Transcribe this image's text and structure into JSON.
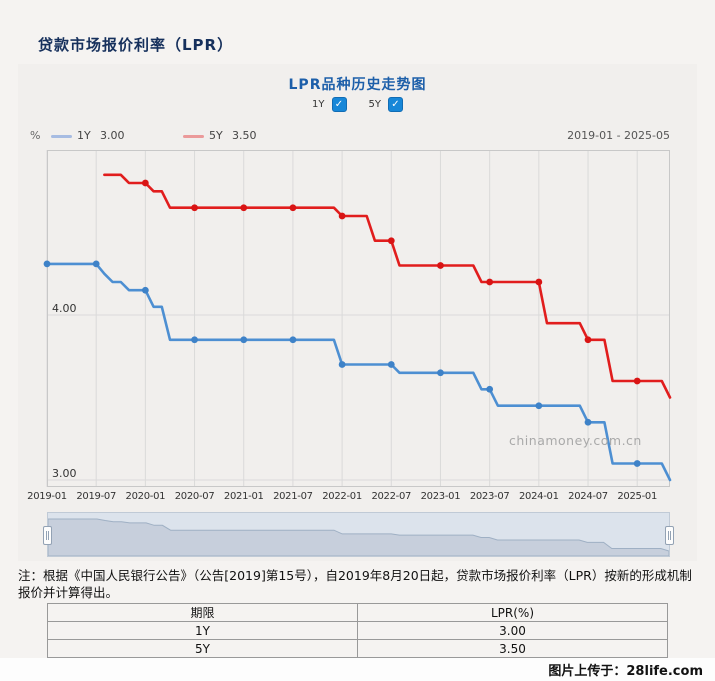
{
  "page": {
    "title": "贷款市场报价利率（LPR）",
    "footer": "图片上传于：28life.com"
  },
  "chart": {
    "title": "LPR品种历史走势图",
    "controls": [
      {
        "label": "1Y",
        "checked": true
      },
      {
        "label": "5Y",
        "checked": true
      }
    ],
    "legend": {
      "unit": "%",
      "items": [
        {
          "name": "1Y",
          "value": "3.00",
          "swatch_color": "#a7bce2"
        },
        {
          "name": "5Y",
          "value": "3.50",
          "swatch_color": "#eb9a9a"
        }
      ]
    },
    "range_label": "2019-01 - 2025-05",
    "watermark": "chinamoney.com.cn"
  },
  "chart_data": {
    "type": "line",
    "x": [
      "2019-01",
      "2019-02",
      "2019-03",
      "2019-04",
      "2019-05",
      "2019-06",
      "2019-07",
      "2019-08",
      "2019-09",
      "2019-10",
      "2019-11",
      "2019-12",
      "2020-01",
      "2020-02",
      "2020-03",
      "2020-04",
      "2020-05",
      "2020-06",
      "2020-07",
      "2020-08",
      "2020-09",
      "2020-10",
      "2020-11",
      "2020-12",
      "2021-01",
      "2021-02",
      "2021-03",
      "2021-04",
      "2021-05",
      "2021-06",
      "2021-07",
      "2021-08",
      "2021-09",
      "2021-10",
      "2021-11",
      "2021-12",
      "2022-01",
      "2022-02",
      "2022-03",
      "2022-04",
      "2022-05",
      "2022-06",
      "2022-07",
      "2022-08",
      "2022-09",
      "2022-10",
      "2022-11",
      "2022-12",
      "2023-01",
      "2023-02",
      "2023-03",
      "2023-04",
      "2023-05",
      "2023-06",
      "2023-07",
      "2023-08",
      "2023-09",
      "2023-10",
      "2023-11",
      "2023-12",
      "2024-01",
      "2024-02",
      "2024-03",
      "2024-04",
      "2024-05",
      "2024-06",
      "2024-07",
      "2024-08",
      "2024-09",
      "2024-10",
      "2024-11",
      "2024-12",
      "2025-01",
      "2025-02",
      "2025-03",
      "2025-04",
      "2025-05"
    ],
    "x_tick_labels": [
      "2019-01",
      "2019-07",
      "2020-01",
      "2020-07",
      "2021-01",
      "2021-07",
      "2022-01",
      "2022-07",
      "2023-01",
      "2023-07",
      "2024-01",
      "2024-07",
      "2025-01"
    ],
    "y_ticks": [
      {
        "value": 4.0,
        "label": "4.00"
      },
      {
        "value": 3.0,
        "label": "3.00"
      }
    ],
    "ylim": [
      2.96,
      5.0
    ],
    "ylabel": "%",
    "grid": true,
    "symbol_interval": 6,
    "series": [
      {
        "name": "1Y",
        "color": "#4d8fd2",
        "dot_color": "#3e82c8",
        "values": [
          4.31,
          4.31,
          4.31,
          4.31,
          4.31,
          4.31,
          4.31,
          4.25,
          4.2,
          4.2,
          4.15,
          4.15,
          4.15,
          4.05,
          4.05,
          3.85,
          3.85,
          3.85,
          3.85,
          3.85,
          3.85,
          3.85,
          3.85,
          3.85,
          3.85,
          3.85,
          3.85,
          3.85,
          3.85,
          3.85,
          3.85,
          3.85,
          3.85,
          3.85,
          3.85,
          3.85,
          3.7,
          3.7,
          3.7,
          3.7,
          3.7,
          3.7,
          3.7,
          3.65,
          3.65,
          3.65,
          3.65,
          3.65,
          3.65,
          3.65,
          3.65,
          3.65,
          3.65,
          3.55,
          3.55,
          3.45,
          3.45,
          3.45,
          3.45,
          3.45,
          3.45,
          3.45,
          3.45,
          3.45,
          3.45,
          3.45,
          3.35,
          3.35,
          3.35,
          3.1,
          3.1,
          3.1,
          3.1,
          3.1,
          3.1,
          3.1,
          3.0
        ]
      },
      {
        "name": "5Y",
        "color": "#e11d1d",
        "dot_color": "#d91414",
        "values": [
          null,
          null,
          null,
          null,
          null,
          null,
          null,
          4.85,
          4.85,
          4.85,
          4.8,
          4.8,
          4.8,
          4.75,
          4.75,
          4.65,
          4.65,
          4.65,
          4.65,
          4.65,
          4.65,
          4.65,
          4.65,
          4.65,
          4.65,
          4.65,
          4.65,
          4.65,
          4.65,
          4.65,
          4.65,
          4.65,
          4.65,
          4.65,
          4.65,
          4.65,
          4.6,
          4.6,
          4.6,
          4.6,
          4.45,
          4.45,
          4.45,
          4.3,
          4.3,
          4.3,
          4.3,
          4.3,
          4.3,
          4.3,
          4.3,
          4.3,
          4.3,
          4.2,
          4.2,
          4.2,
          4.2,
          4.2,
          4.2,
          4.2,
          4.2,
          3.95,
          3.95,
          3.95,
          3.95,
          3.95,
          3.85,
          3.85,
          3.85,
          3.6,
          3.6,
          3.6,
          3.6,
          3.6,
          3.6,
          3.6,
          3.5
        ]
      }
    ]
  },
  "note": "注：根据《中国人民银行公告》（公告[2019]第15号），自2019年8月20日起，贷款市场报价利率（LPR）按新的形成机制报价并计算得出。",
  "table": {
    "headers": [
      "期限",
      "LPR(%)"
    ],
    "rows": [
      [
        "1Y",
        "3.00"
      ],
      [
        "5Y",
        "3.50"
      ]
    ]
  }
}
